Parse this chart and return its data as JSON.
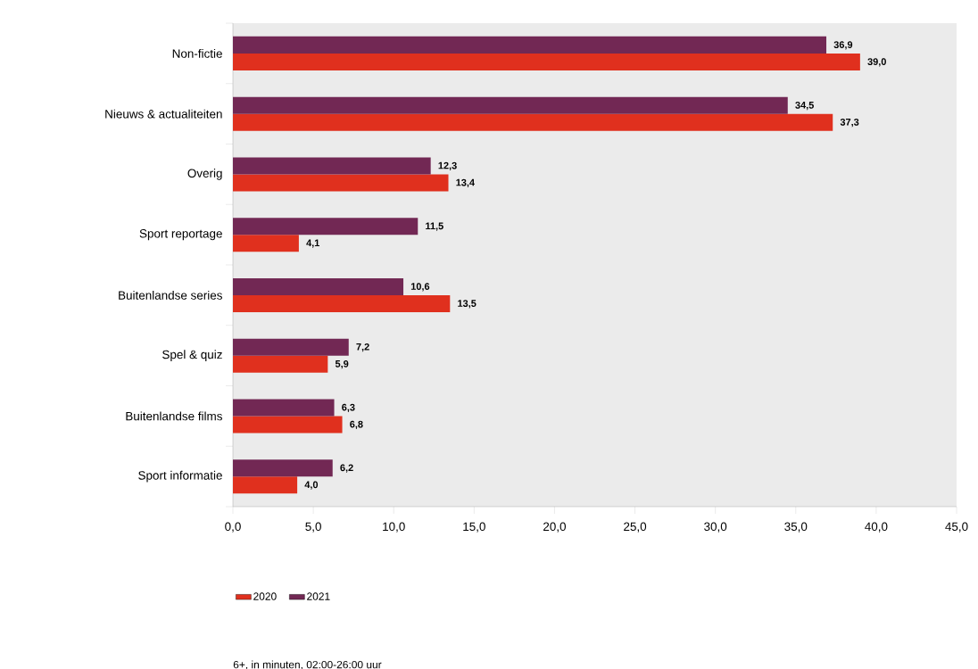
{
  "chart_data": {
    "type": "bar",
    "orientation": "horizontal",
    "categories": [
      "Non-fictie",
      "Nieuws & actualiteiten",
      "Overig",
      "Sport reportage",
      "Buitenlandse series",
      "Spel & quiz",
      "Buitenlandse  films",
      "Sport informatie"
    ],
    "series": [
      {
        "name": "2020",
        "color": "#e0301e",
        "values": [
          39.0,
          37.3,
          13.4,
          4.1,
          13.5,
          5.9,
          6.8,
          4.0
        ],
        "value_labels": [
          "39,0",
          "37,3",
          "13,4",
          "4,1",
          "13,5",
          "5,9",
          "6,8",
          "4,0"
        ]
      },
      {
        "name": "2021",
        "color": "#722854",
        "values": [
          36.9,
          34.5,
          12.3,
          11.5,
          10.6,
          7.2,
          6.3,
          6.2
        ],
        "value_labels": [
          "36,9",
          "34,5",
          "12,3",
          "11,5",
          "10,6",
          "7,2",
          "6,3",
          "6,2"
        ]
      }
    ],
    "xlim": [
      0,
      45
    ],
    "xticks": [
      {
        "value": 0,
        "label": "0,0"
      },
      {
        "value": 5,
        "label": "5,0"
      },
      {
        "value": 10,
        "label": "10,0"
      },
      {
        "value": 15,
        "label": "15,0"
      },
      {
        "value": 20,
        "label": "20,0"
      },
      {
        "value": 25,
        "label": "25,0"
      },
      {
        "value": 30,
        "label": "30,0"
      },
      {
        "value": 35,
        "label": "35,0"
      },
      {
        "value": 40,
        "label": "40,0"
      },
      {
        "value": 45,
        "label": "45,0"
      }
    ],
    "legend": "bottom",
    "annotations": [
      "6+, in minuten, 02:00-26:00 uur"
    ]
  }
}
